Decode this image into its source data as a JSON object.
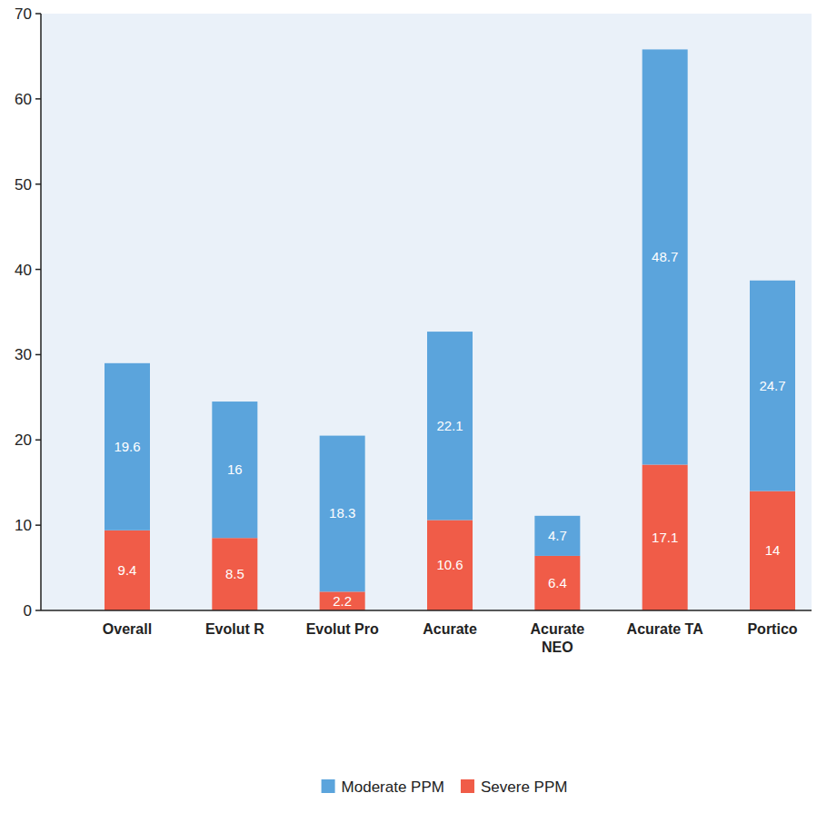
{
  "chart_data": {
    "type": "bar",
    "stacked": true,
    "data_labels": true,
    "grid": false,
    "legend": "bottom",
    "categories": [
      "Overall",
      "Evolut R",
      "Evolut Pro",
      "Acurate",
      "Acurate NEO",
      "Acurate TA",
      "Portico"
    ],
    "series": [
      {
        "name": "Severe PPM",
        "color": "#f05c48",
        "values": [
          9.4,
          8.5,
          2.2,
          10.6,
          6.4,
          17.1,
          14
        ]
      },
      {
        "name": "Moderate PPM",
        "color": "#5ba4dc",
        "values": [
          19.6,
          16,
          18.3,
          22.1,
          4.7,
          48.7,
          24.7
        ]
      }
    ],
    "ylim": [
      0,
      70
    ],
    "yticks": [
      0,
      10,
      20,
      30,
      40,
      50,
      60,
      70
    ]
  }
}
